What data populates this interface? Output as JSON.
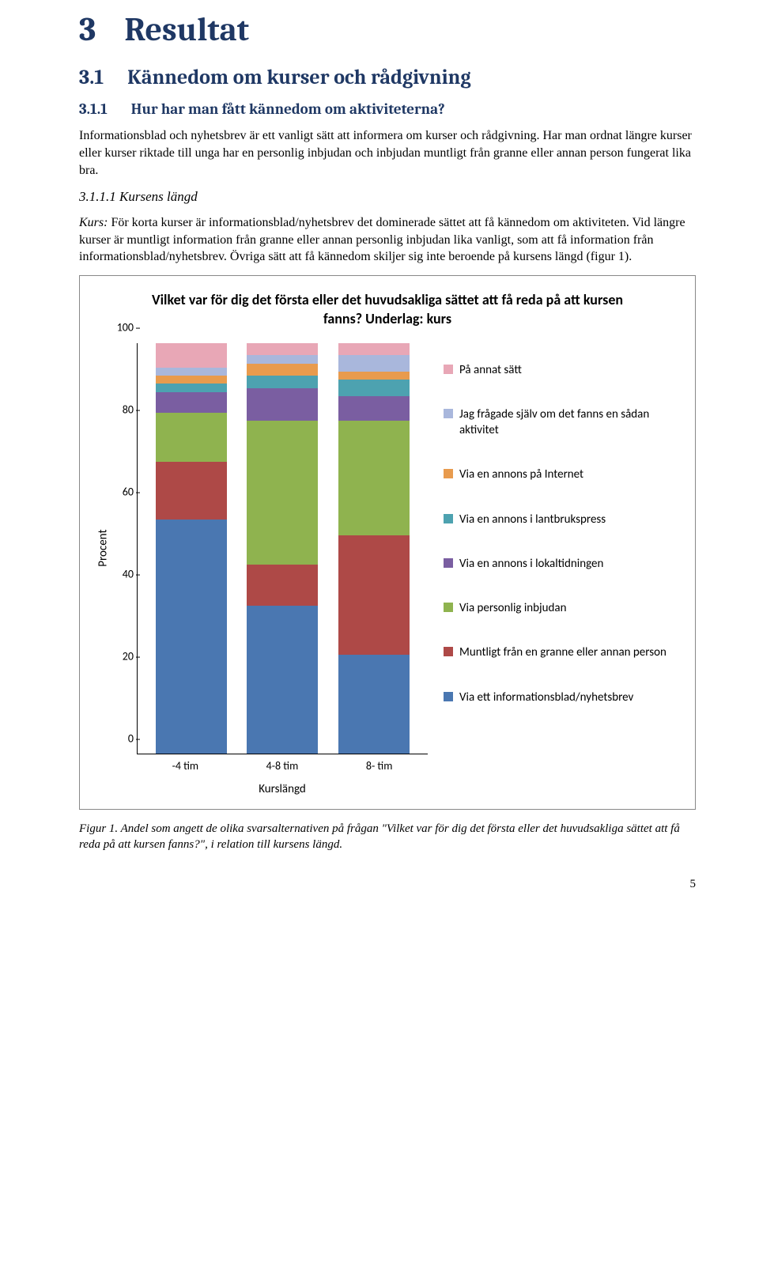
{
  "h1": {
    "num": "3",
    "text": "Resultat"
  },
  "h2": {
    "num": "3.1",
    "text": "Kännedom om kurser och rådgivning"
  },
  "h3": {
    "num": "3.1.1",
    "text": "Hur har man fått kännedom om aktiviteterna?"
  },
  "p1": "Informationsblad och nyhetsbrev är ett vanligt sätt att informera om kurser och rådgivning. Har man ordnat längre kurser eller kurser riktade till unga har en personlig inbjudan och inbjudan muntligt från granne eller annan person fungerat lika bra.",
  "h4": "3.1.1.1 Kursens längd",
  "p2a": "Kurs:",
  "p2b": " För korta kurser är informationsblad/nyhetsbrev det dominerade sättet att få kännedom om aktiviteten. Vid längre kurser är muntligt information från granne eller annan personlig inbjudan lika vanligt, som att få information från informationsblad/nyhetsbrev. Övriga sätt att få kännedom skiljer sig inte beroende på kursens längd (figur 1).",
  "chart": {
    "title": "Vilket var för dig det första eller det huvudsakliga sättet att få reda på att kursen fanns? Underlag: kurs",
    "type": "stacked-bar",
    "ylabel": "Procent",
    "xlabel": "Kurslängd",
    "ylim": [
      0,
      100
    ],
    "ytick_step": 20,
    "categories": [
      "-4 tim",
      "4-8 tim",
      "8- tim"
    ],
    "series": [
      {
        "key": "annat",
        "label": "På annat sätt",
        "color": "#e8a7b6"
      },
      {
        "key": "fragade",
        "label": "Jag frågade själv om det fanns en sådan aktivitet",
        "color": "#a9b7dc"
      },
      {
        "key": "internet",
        "label": "Via en annons på Internet",
        "color": "#e89b4e"
      },
      {
        "key": "lantbruk",
        "label": "Via en annons i lantbrukspress",
        "color": "#4da2b0"
      },
      {
        "key": "lokal",
        "label": "Via en annons i lokaltidningen",
        "color": "#7a5ea1"
      },
      {
        "key": "inbjudan",
        "label": "Via personlig inbjudan",
        "color": "#8fb34f"
      },
      {
        "key": "muntligt",
        "label": "Muntligt från en granne eller annan person",
        "color": "#ae4947"
      },
      {
        "key": "infoblad",
        "label": "Via ett informationsblad/nyhetsbrev",
        "color": "#4a77b1"
      }
    ],
    "data": {
      "-4 tim": {
        "infoblad": 57,
        "muntligt": 14,
        "inbjudan": 12,
        "lokal": 5,
        "lantbruk": 2,
        "internet": 2,
        "fragade": 2,
        "annat": 6
      },
      "4-8 tim": {
        "infoblad": 36,
        "muntligt": 10,
        "inbjudan": 35,
        "lokal": 8,
        "lantbruk": 3,
        "internet": 3,
        "fragade": 2,
        "annat": 3
      },
      "8- tim": {
        "infoblad": 24,
        "muntligt": 29,
        "inbjudan": 28,
        "lokal": 6,
        "lantbruk": 4,
        "internet": 2,
        "fragade": 4,
        "annat": 3
      }
    }
  },
  "caption": "Figur 1. Andel som angett de olika svarsalternativen på frågan \"Vilket var för dig det första eller det huvudsakliga sättet att få reda på att kursen fanns?\", i relation till kursens längd.",
  "pagenum": "5"
}
